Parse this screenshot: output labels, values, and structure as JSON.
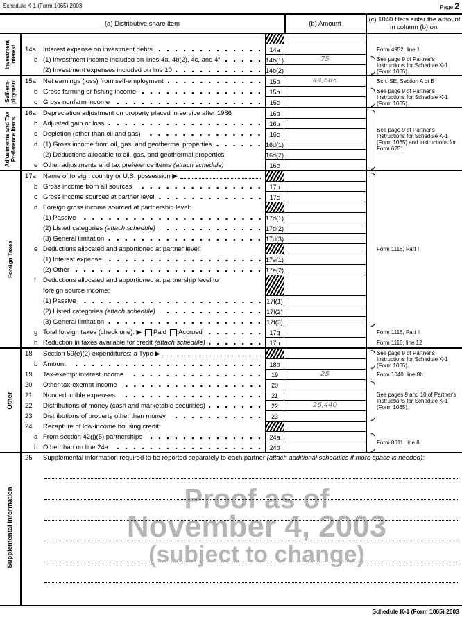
{
  "header": {
    "left": "Schedule K-1 (Form 1065) 2003",
    "page_label": "Page",
    "page_number": "2"
  },
  "columns": {
    "a": "(a) Distributive share item",
    "b": "(b) Amount",
    "c": "(c) 1040 filers enter the amount in column (b) on:"
  },
  "sections": [
    {
      "label": "Investment Interest",
      "rows": [
        {
          "code": "",
          "hatch": true
        },
        {
          "num": "14a",
          "text": "Interest expense on investment debts",
          "dots": true,
          "code": "14a"
        },
        {
          "sub": "b",
          "text": "(1) Investment income included on lines 4a, 4b(2), 4c, and 4f",
          "dots": true,
          "code": "14b(1)",
          "amount": "75"
        },
        {
          "text": "(2) Investment expenses included on line 10",
          "dots": true,
          "code": "14b(2)"
        }
      ],
      "notes": [
        {
          "from": 1,
          "to": 1,
          "text": "Form 4952, line 1"
        },
        {
          "from": 2,
          "to": 3,
          "brace": true,
          "text": "See page 9 of Partner's Instructions for Schedule K-1 (Form 1065)."
        }
      ]
    },
    {
      "label": "Self-em- ployment",
      "rows": [
        {
          "num": "15a",
          "text": "Net earnings (loss) from self-employment",
          "dots": true,
          "code": "15a",
          "amount": "44,685"
        },
        {
          "sub": "b",
          "text": "Gross farming or fishing income",
          "dots": true,
          "code": "15b"
        },
        {
          "sub": "c",
          "text": "Gross nonfarm income",
          "dots": true,
          "code": "15c"
        }
      ],
      "notes": [
        {
          "from": 0,
          "to": 0,
          "text": "Sch. SE, Section A or B"
        },
        {
          "from": 1,
          "to": 2,
          "brace": true,
          "text": "See page 9 of Partner's Instructions for Schedule K-1 (Form 1065)."
        }
      ]
    },
    {
      "label": "Adjustments and Tax Preference Items",
      "rows": [
        {
          "num": "16a",
          "text": "Depreciation adjustment on property placed in service after 1986",
          "code": "16a"
        },
        {
          "sub": "b",
          "text": "Adjusted gain or loss",
          "dots": true,
          "code": "16b"
        },
        {
          "sub": "c",
          "text": "Depletion (other than oil and gas)",
          "dots": true,
          "code": "16c"
        },
        {
          "sub": "d",
          "text": "(1) Gross income from oil, gas, and geothermal properties",
          "dots": true,
          "code": "16d(1)"
        },
        {
          "text": "(2) Deductions allocable to oil, gas, and geothermal properties",
          "code": "16d(2)"
        },
        {
          "sub": "e",
          "text": "Other adjustments and tax preference items",
          "em": "(attach schedule)",
          "code": "16e"
        }
      ],
      "notes": [
        {
          "from": 0,
          "to": 5,
          "brace": true,
          "text": "See page 9 of Partner's Instructions for Schedule K-1 (Form 1065) and Instructions for Form 6251."
        }
      ]
    },
    {
      "label": "Foreign Taxes",
      "rows": [
        {
          "num": "17a",
          "text": "Name of foreign country or U.S. possession ▶",
          "fine": true,
          "hatch": true
        },
        {
          "sub": "b",
          "text": "Gross income from all sources",
          "dots": true,
          "code": "17b"
        },
        {
          "sub": "c",
          "text": "Gross income sourced at partner level",
          "dots": true,
          "code": "17c"
        },
        {
          "sub": "d",
          "text": "Foreign gross income sourced at partnership level:",
          "hatch": true
        },
        {
          "text": "(1) Passive",
          "dots": true,
          "code": "17d(1)"
        },
        {
          "text": "(2) Listed categories",
          "em": "(attach schedule)",
          "dots": true,
          "code": "17d(2)"
        },
        {
          "text": "(3) General limitation",
          "dots": true,
          "code": "17d(3)"
        },
        {
          "sub": "e",
          "text": "Deductions allocated and apportioned at partner level:",
          "hatch": true
        },
        {
          "text": "(1) Interest expense",
          "dots": true,
          "code": "17e(1)"
        },
        {
          "text": "(2) Other",
          "dots": true,
          "code": "17e(2)"
        },
        {
          "sub": "f",
          "text": "Deductions allocated and apportioned at partnership level to",
          "hatch": true,
          "span": 2
        },
        {
          "text": "foreign source income:",
          "skipcell": true
        },
        {
          "text": "(1) Passive",
          "dots": true,
          "code": "17f(1)"
        },
        {
          "text": "(2) Listed categories",
          "em": "(attach schedule)",
          "dots": true,
          "code": "17f(2)"
        },
        {
          "text": "(3) General limitation",
          "dots": true,
          "code": "17f(3)"
        },
        {
          "sub": "g",
          "text": "Total foreign taxes (check one): ▶",
          "checks": [
            "Paid",
            "Accrued"
          ],
          "dots": true,
          "code": "17g"
        },
        {
          "sub": "h",
          "text": "Reduction in taxes available for credit",
          "em": "(attach schedule)",
          "dots": true,
          "code": "17h"
        }
      ],
      "notes": [
        {
          "from": 0,
          "to": 14,
          "brace": true,
          "text": "Form 1116, Part I"
        },
        {
          "from": 15,
          "to": 15,
          "text": "Form 1116, Part II"
        },
        {
          "from": 16,
          "to": 16,
          "text": "Form 1116, line 12"
        }
      ]
    },
    {
      "label": "Other",
      "rows": [
        {
          "num": "18",
          "text": "Section 59(e)(2) expenditures: a Type ▶",
          "fine": true,
          "hatch": true
        },
        {
          "sub": "b",
          "text": "Amount",
          "dots": true,
          "code": "18b"
        },
        {
          "num": "19",
          "text": "Tax-exempt interest income",
          "dots": true,
          "code": "19",
          "amount": "25"
        },
        {
          "num": "20",
          "text": "Other tax-exempt income",
          "dots": true,
          "code": "20"
        },
        {
          "num": "21",
          "text": "Nondeductible expenses",
          "dots": true,
          "code": "21"
        },
        {
          "num": "22",
          "text": "Distributions of money (cash and marketable securities)",
          "dots": true,
          "code": "22",
          "amount": "26,440"
        },
        {
          "num": "23",
          "text": "Distributions of property other than money",
          "dots": true,
          "code": "23"
        },
        {
          "num": "24",
          "text": "Recapture of low-income housing credit:",
          "hatch": true
        },
        {
          "sub": "a",
          "text": "From section 42(j)(5) partnerships",
          "dots": true,
          "code": "24a"
        },
        {
          "sub": "b",
          "text": "Other than on line 24a",
          "dots": true,
          "code": "24b"
        }
      ],
      "notes": [
        {
          "from": 0,
          "to": 1,
          "brace": true,
          "text": "See page 9 of Partner's Instructions for Schedule K-1 (Form 1065)."
        },
        {
          "from": 2,
          "to": 2,
          "text": "Form 1040, line 8b"
        },
        {
          "from": 3,
          "to": 6,
          "brace": true,
          "text": "See pages 9 and 10 of Partner's Instructions for Schedule K-1 (Form 1065)."
        },
        {
          "from": 8,
          "to": 9,
          "brace": true,
          "text": "Form 8611, line 8"
        }
      ]
    }
  ],
  "supplemental": {
    "label": "Supplemental Information",
    "num": "25",
    "text": "Supplemental information required to be reported separately to each partner",
    "em": "(attach additional schedules if more space is needed):"
  },
  "watermark": {
    "line1": "Proof as of",
    "line2": "November 4, 2003",
    "line3": "(subject to change)"
  },
  "footer": "Schedule K-1 (Form 1065) 2003"
}
